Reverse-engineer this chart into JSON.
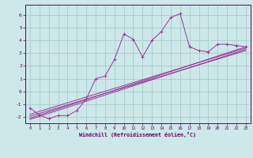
{
  "xlabel": "Windchill (Refroidissement éolien,°C)",
  "bg_color": "#cce8e8",
  "grid_color": "#aacccc",
  "line_color": "#993399",
  "xlim": [
    -0.5,
    23.5
  ],
  "ylim": [
    -2.5,
    6.8
  ],
  "yticks": [
    -2,
    -1,
    0,
    1,
    2,
    3,
    4,
    5,
    6
  ],
  "xticks": [
    0,
    1,
    2,
    3,
    4,
    5,
    6,
    7,
    8,
    9,
    10,
    11,
    12,
    13,
    14,
    15,
    16,
    17,
    18,
    19,
    20,
    21,
    22,
    23
  ],
  "main_x": [
    0,
    1,
    2,
    3,
    4,
    5,
    6,
    7,
    8,
    9,
    10,
    11,
    12,
    13,
    14,
    15,
    16,
    17,
    18,
    19,
    20,
    21,
    22,
    23
  ],
  "main_y": [
    -1.3,
    -1.85,
    -2.15,
    -1.9,
    -1.9,
    -1.5,
    -0.6,
    1.0,
    1.2,
    2.5,
    4.5,
    4.1,
    2.7,
    4.0,
    4.7,
    5.8,
    6.1,
    3.5,
    3.2,
    3.1,
    3.7,
    3.7,
    3.6,
    3.5
  ],
  "line2_x": [
    0,
    23
  ],
  "line2_y": [
    -1.8,
    3.4
  ],
  "line3_x": [
    0,
    23
  ],
  "line3_y": [
    -1.95,
    3.2
  ],
  "line4_x": [
    0,
    23
  ],
  "line4_y": [
    -2.1,
    3.5
  ],
  "line5_x": [
    0,
    23
  ],
  "line5_y": [
    -2.2,
    3.3
  ]
}
